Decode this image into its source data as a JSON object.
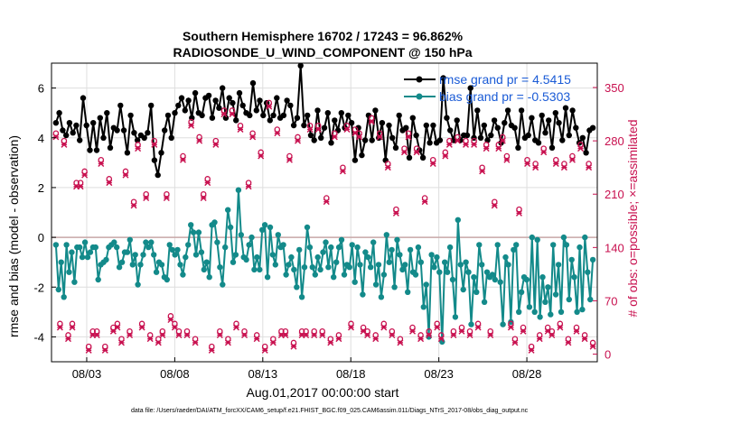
{
  "chart_data": {
    "type": "line",
    "title_line1": "Southern Hemisphere 16702 / 17243 = 96.862%",
    "title_line2": "RADIOSONDE_U_WIND_COMPONENT @ 150 hPa",
    "xlabel": "Aug.01,2017 00:00:00 start",
    "ylabel_left": "rmse and bias (model - observation)",
    "ylabel_right": "# of obs: o=possible; ×=assimilated",
    "xlim": [
      1.0,
      32.0
    ],
    "ylim_left": [
      -5,
      7
    ],
    "ylim_right": [
      -10,
      382
    ],
    "x_ticks": [
      3,
      8,
      13,
      18,
      23,
      28
    ],
    "x_tick_labels": [
      "08/03",
      "08/08",
      "08/13",
      "08/18",
      "08/23",
      "08/28"
    ],
    "y_ticks_left": [
      -4,
      -2,
      0,
      2,
      4,
      6
    ],
    "y_ticks_right": [
      0,
      70,
      140,
      210,
      280,
      350
    ],
    "grid": true,
    "zero_line": 0,
    "colors": {
      "rmse": "#000000",
      "bias": "#138a8a",
      "obs": "#c8104f",
      "legend_text": "#1a5bd6"
    },
    "legend": [
      {
        "name": "rmse grand pr = 4.5415",
        "series": "rmse"
      },
      {
        "name": "bias grand pr = -0.5303",
        "series": "bias"
      }
    ],
    "footnote": "data file: /Users/raeder/DAI/ATM_forcXX/CAM6_setup/f.e21.FHIST_BGC.f09_025.CAM6assim.011/Diags_NTrS_2017-08/obs_diag_output.nc",
    "series": [
      {
        "name": "rmse",
        "axis": "left",
        "values": [
          4.6,
          5.0,
          4.3,
          4.1,
          4.6,
          4.2,
          4.5,
          3.9,
          5.6,
          4.5,
          3.5,
          4.6,
          3.5,
          4.8,
          4.0,
          5.0,
          3.6,
          4.4,
          4.3,
          5.3,
          4.3,
          3.4,
          4.9,
          4.2,
          3.9,
          4.1,
          4.0,
          4.2,
          5.3,
          3.1,
          2.5,
          3.4,
          4.3,
          4.9,
          4.0,
          5.0,
          5.3,
          5.6,
          5.1,
          5.5,
          4.8,
          5.8,
          5.0,
          4.9,
          5.6,
          5.7,
          4.8,
          5.5,
          5.2,
          6.0,
          4.8,
          5.6,
          5.4,
          4.7,
          5.8,
          5.3,
          5.0,
          4.9,
          6.2,
          5.1,
          5.5,
          4.9,
          5.4,
          4.7,
          4.9,
          5.6,
          4.8,
          4.9,
          5.5,
          5.3,
          4.5,
          4.8,
          6.9,
          4.5,
          4.9,
          4.1,
          3.9,
          5.1,
          4.0,
          4.4,
          5.0,
          3.8,
          4.7,
          4.3,
          5.0,
          4.4,
          4.9,
          4.6,
          3.1,
          4.4,
          3.3,
          3.9,
          4.9,
          3.9,
          5.1,
          4.0,
          4.6,
          3.1,
          4.5,
          4.0,
          3.6,
          4.9,
          4.3,
          4.4,
          3.2,
          4.8,
          4.1,
          3.5,
          3.2,
          4.5,
          3.8,
          4.5,
          3.8,
          3.9,
          6.4,
          4.8,
          4.3,
          3.9,
          4.7,
          3.9,
          4.1,
          4.1,
          6.0,
          4.0,
          5.1,
          4.0,
          4.5,
          3.9,
          4.1,
          4.7,
          4.4,
          3.8,
          4.6,
          5.1,
          4.5,
          4.4,
          3.6,
          5.1,
          4.0,
          4.1,
          4.8,
          3.9,
          3.8,
          4.9,
          4.2,
          4.7,
          3.6,
          5.0,
          4.6,
          3.9,
          5.2,
          4.1,
          5.1,
          4.4,
          3.8,
          4.0,
          3.4,
          4.3,
          4.4
        ]
      },
      {
        "name": "bias",
        "axis": "left",
        "values": [
          -0.3,
          -2.1,
          -1.0,
          -2.4,
          -0.3,
          -1.4,
          -0.6,
          -1.8,
          -0.4,
          -0.4,
          -0.8,
          -0.2,
          -0.8,
          -0.6,
          -0.4,
          -0.4,
          -1.7,
          -1.1,
          -1.0,
          -0.9,
          -0.4,
          -0.3,
          -0.2,
          -0.4,
          -1.2,
          -1.0,
          -0.6,
          -0.6,
          -0.1,
          -1.1,
          -0.7,
          -1.9,
          -1.1,
          -0.7,
          -0.2,
          -0.4,
          -0.2,
          -0.7,
          -1.4,
          -1.0,
          -1.1,
          -1.6,
          -1.7,
          -0.3,
          -0.5,
          -0.7,
          -0.5,
          -1.1,
          -1.5,
          -0.8,
          -0.3,
          0.5,
          0.2,
          -0.7,
          0.2,
          -0.6,
          -1.3,
          -1.0,
          -1.6,
          0.5,
          0.6,
          -0.2,
          -1.2,
          -1.9,
          -0.4,
          1.1,
          0.4,
          -1.0,
          -0.7,
          1.9,
          0.1,
          -0.8,
          -0.9,
          -0.3,
          0.0,
          -1.3,
          -0.8,
          -1.3,
          0.3,
          0.5,
          -1.6,
          0.4,
          -0.7,
          -1.1,
          0.1,
          -0.4,
          -0.3,
          -1.5,
          -1.1,
          -0.8,
          -1.3,
          -2.0,
          -0.5,
          -2.4,
          -1.2,
          0.4,
          -0.4,
          -1.2,
          -1.5,
          -0.8,
          -1.3,
          -0.6,
          -0.2,
          -1.2,
          -0.4,
          -1.6,
          -1.0,
          -0.4,
          -0.1,
          -1.5,
          -1.1,
          -1.2,
          -0.3,
          -1.8,
          -0.4,
          -1.1,
          -2.3,
          -0.6,
          -0.8,
          -1.2,
          -0.2,
          -1.9,
          -1.1,
          -2.4,
          -1.5,
          0.1,
          -1.0,
          -0.5,
          -2.0,
          -0.1,
          -0.7,
          -1.3,
          -1.1,
          -2.2,
          -0.5,
          -1.4,
          -1.5,
          -0.4,
          -1.0,
          -2.8,
          -1.9,
          -4.0,
          -0.7,
          -1.2,
          -0.8,
          -1.4,
          -4.2,
          -1.0,
          -1.4,
          -0.4,
          -1.7,
          -3.2,
          0.7,
          -1.1,
          -2.1,
          -1.0,
          -1.4,
          -3.5,
          -1.6,
          -2.2,
          -0.3,
          -1.1,
          -2.6,
          -1.4,
          -1.6,
          -1.5,
          -1.7,
          -0.3,
          -1.8,
          -3.5,
          -0.8,
          -1.1,
          -3.4,
          -0.5,
          -0.3,
          -3.0,
          -2.2,
          -1.6,
          -1.7,
          -2.8,
          0.0,
          -3.0,
          -0.1,
          -3.2,
          -1.6,
          -2.6,
          -2.0,
          -3.1,
          -0.3,
          -2.3,
          -1.1,
          -3.0,
          0.0,
          -0.3,
          -2.5,
          -0.9,
          -1.6,
          -3.0,
          -0.4,
          -2.9,
          0.0,
          -1.4,
          -2.5,
          -0.9
        ]
      },
      {
        "name": "obs_possible",
        "axis": "right",
        "values": [
          290,
          40,
          280,
          25,
          40,
          225,
          225,
          240,
          10,
          30,
          30,
          255,
          10,
          230,
          35,
          40,
          20,
          240,
          30,
          200,
          275,
          40,
          210,
          25,
          280,
          20,
          30,
          210,
          50,
          40,
          30,
          260,
          30,
          305,
          20,
          285,
          210,
          230,
          10,
          280,
          30,
          320,
          20,
          320,
          40,
          300,
          30,
          225,
          290,
          25,
          265,
          10,
          330,
          20,
          295,
          30,
          30,
          260,
          15,
          285,
          30,
          30,
          300,
          30,
          300,
          30,
          205,
          20,
          290,
          25,
          245,
          300,
          40,
          295,
          290,
          35,
          30,
          310,
          25,
          290,
          40,
          250,
          30,
          190,
          20,
          270,
          290,
          35,
          270,
          25,
          205,
          30,
          255,
          40,
          25,
          265,
          280,
          30,
          285,
          35,
          280,
          30,
          280,
          40,
          245,
          275,
          30,
          200,
          275,
          285,
          260,
          40,
          20,
          190,
          35,
          255,
          10,
          250,
          25,
          270,
          35,
          30,
          255,
          40,
          250,
          20,
          260,
          35,
          275,
          25,
          250,
          15
        ]
      },
      {
        "name": "obs_assimilated",
        "axis": "right",
        "values": [
          285,
          35,
          275,
          20,
          35,
          220,
          220,
          235,
          5,
          25,
          25,
          250,
          5,
          225,
          30,
          35,
          15,
          235,
          25,
          195,
          270,
          35,
          205,
          20,
          275,
          15,
          25,
          205,
          45,
          35,
          25,
          255,
          25,
          300,
          15,
          280,
          205,
          225,
          5,
          275,
          25,
          315,
          15,
          315,
          35,
          295,
          25,
          220,
          285,
          20,
          260,
          5,
          325,
          15,
          290,
          25,
          25,
          255,
          10,
          280,
          25,
          25,
          295,
          25,
          295,
          25,
          200,
          15,
          285,
          20,
          240,
          295,
          35,
          290,
          285,
          30,
          25,
          305,
          20,
          285,
          35,
          245,
          25,
          185,
          15,
          265,
          285,
          30,
          265,
          20,
          200,
          25,
          250,
          35,
          20,
          260,
          275,
          25,
          280,
          30,
          275,
          25,
          275,
          35,
          240,
          270,
          25,
          195,
          270,
          280,
          255,
          35,
          15,
          185,
          30,
          250,
          5,
          245,
          20,
          265,
          30,
          25,
          250,
          35,
          245,
          15,
          255,
          30,
          270,
          20,
          245,
          10
        ]
      }
    ]
  }
}
